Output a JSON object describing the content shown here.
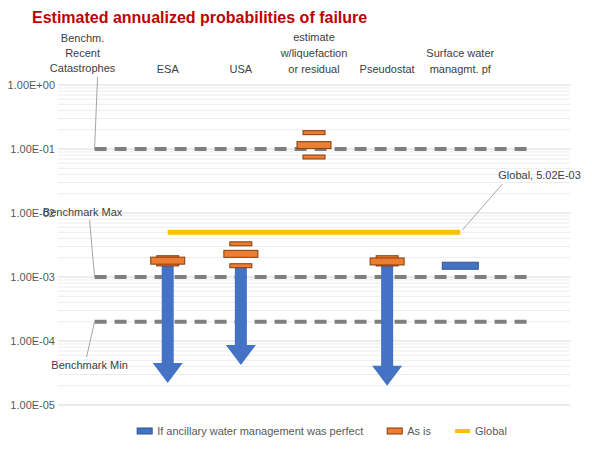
{
  "chart_data": {
    "type": "range",
    "title": "Estimated annualized probabilities of failure",
    "categories": [
      null,
      "ESA",
      "USA",
      "estimate w/liquefaction or residual",
      "Pseudostat",
      "Surface water managmt. pf",
      null
    ],
    "log": "y",
    "grid": true,
    "legend": "bottom",
    "ylim": [
      1e-05,
      1
    ],
    "yticks": [
      {
        "value": 1,
        "label": "1.00E+00"
      },
      {
        "value": 0.1,
        "label": "1.00E-01"
      },
      {
        "value": 0.01,
        "label": "1.00E-02"
      },
      {
        "value": 0.001,
        "label": "1.00E-03"
      },
      {
        "value": 0.0001,
        "label": "1.00E-04"
      },
      {
        "value": 1e-05,
        "label": "1.00E-05"
      }
    ],
    "reference_lines": [
      {
        "label": "Benchm. Recent Catastrophes",
        "value": 0.1,
        "color": "#7f7f7f"
      },
      {
        "label": "Benchmark Max",
        "value": 0.001,
        "color": "#7f7f7f"
      },
      {
        "label": "Benchmark Min",
        "value": 0.0002,
        "color": "#7f7f7f"
      }
    ],
    "series": [
      {
        "name": "If ancillary water management was perfect",
        "color": "#4472c4",
        "type": "arrow",
        "values": [
          null,
          2.2e-05,
          4.2e-05,
          null,
          2e-05,
          0.0015,
          null
        ],
        "from": [
          null,
          0.0015,
          0.0015,
          null,
          0.0015,
          null,
          null
        ]
      },
      {
        "name": "As is",
        "color": "#ed7d31",
        "type": "box",
        "values": [
          null,
          0.0018,
          0.0023,
          0.115,
          0.00175,
          null,
          null
        ],
        "low": [
          null,
          0.0016,
          0.0015,
          0.075,
          0.0016,
          null,
          null
        ],
        "high": [
          null,
          0.002,
          0.0033,
          0.18,
          0.002,
          null,
          null
        ]
      },
      {
        "name": "Global",
        "color": "#ffc000",
        "type": "line",
        "values": [
          null,
          0.00502,
          0.00502,
          0.00502,
          0.00502,
          0.00502,
          null
        ],
        "annotation": "Global, 5.02E-03"
      }
    ]
  }
}
